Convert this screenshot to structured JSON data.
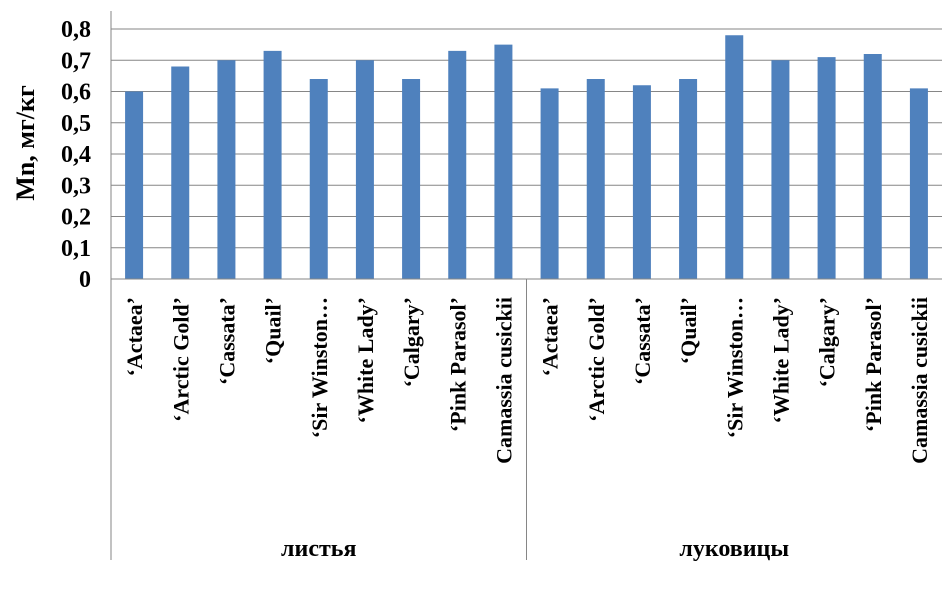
{
  "chart_data": {
    "type": "bar",
    "ylabel": "Mn, мг/кг",
    "ylim": [
      0,
      0.8
    ],
    "yticks": [
      "0",
      "0,1",
      "0,2",
      "0,3",
      "0,4",
      "0,5",
      "0,6",
      "0,7",
      "0,8"
    ],
    "grid": true,
    "bar_color": "#4f81bd",
    "groups": [
      {
        "label": "листья",
        "categories": [
          "‘Actaea’",
          "‘Arctic Gold’",
          "‘Cassata’",
          "‘Quail’",
          "‘Sir Winston…",
          "‘White Lady’",
          "‘Calgary’",
          "‘Pink Parasol’",
          "Camassia cusickii"
        ],
        "values": [
          0.6,
          0.68,
          0.7,
          0.73,
          0.64,
          0.7,
          0.64,
          0.73,
          0.75
        ]
      },
      {
        "label": "луковицы",
        "categories": [
          "‘Actaea’",
          "‘Arctic Gold’",
          "‘Cassata’",
          "‘Quail’",
          "‘Sir Winston…",
          "‘White Lady’",
          "‘Calgary’",
          "‘Pink Parasol’",
          "Camassia cusickii"
        ],
        "values": [
          0.61,
          0.64,
          0.62,
          0.64,
          0.78,
          0.7,
          0.71,
          0.72,
          0.61
        ]
      }
    ]
  }
}
